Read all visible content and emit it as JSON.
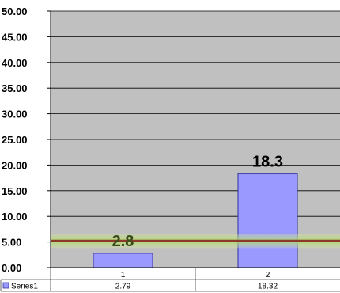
{
  "chart_data": {
    "type": "bar",
    "categories": [
      "1",
      "2"
    ],
    "series": [
      {
        "name": "Series1",
        "values": [
          2.79,
          18.32
        ],
        "data_labels": [
          "2.8",
          "18.3"
        ]
      }
    ],
    "reference_line": {
      "value": 5.2
    },
    "ylim": [
      0,
      50
    ],
    "ytick_labels": [
      "0.00",
      "5.00",
      "10.00",
      "15.00",
      "20.00",
      "25.00",
      "30.00",
      "35.00",
      "40.00",
      "45.00",
      "50.00"
    ],
    "grid": true,
    "legend": "data-table",
    "data_table": {
      "row_label": "Series1",
      "values": [
        "2.79",
        "18.32"
      ]
    }
  },
  "colors": {
    "plot_background": "#c0c0c0",
    "bar_fill": "#9999ff",
    "bar_stroke": "#333399",
    "reference_line": "#8b3a2a",
    "reference_glow": "#b8e07a",
    "label_low": "#3b4a1a",
    "label_high": "#000000"
  }
}
